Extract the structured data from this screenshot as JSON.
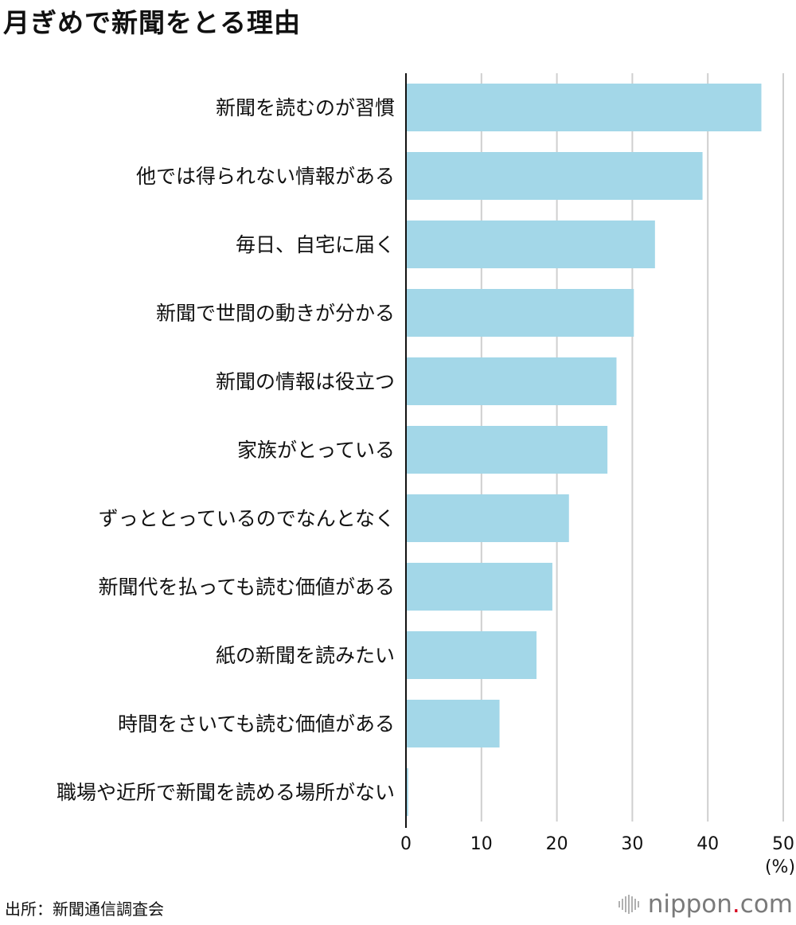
{
  "title": "月ぎめで新聞をとる理由",
  "source": "出所：新聞通信調査会",
  "brand": {
    "name_part1": "nippon",
    "dot": ".",
    "name_part2": "com"
  },
  "colors": {
    "bar": "#a3d7e8",
    "grid": "#cfcfcf",
    "axis": "#111111",
    "brand_dot": "#d7001d"
  },
  "chart_data": {
    "type": "bar",
    "orientation": "horizontal",
    "title": "月ぎめで新聞をとる理由",
    "categories": [
      "新聞を読むのが習慣",
      "他では得られない情報がある",
      "毎日、自宅に届く",
      "新聞で世間の動きが分かる",
      "新聞の情報は役立つ",
      "家族がとっている",
      "ずっととっているのでなんとなく",
      "新聞代を払っても読む価値がある",
      "紙の新聞を読みたい",
      "時間をさいても読む価値がある",
      "職場や近所で新聞を読める場所がない"
    ],
    "values": [
      47.1,
      39.3,
      33.0,
      30.2,
      27.9,
      26.7,
      21.6,
      19.4,
      17.3,
      12.4,
      0.3
    ],
    "xlim": [
      0,
      50
    ],
    "xticks": [
      0,
      10,
      20,
      30,
      40,
      50
    ],
    "xunit": "(%)",
    "grid": true
  }
}
